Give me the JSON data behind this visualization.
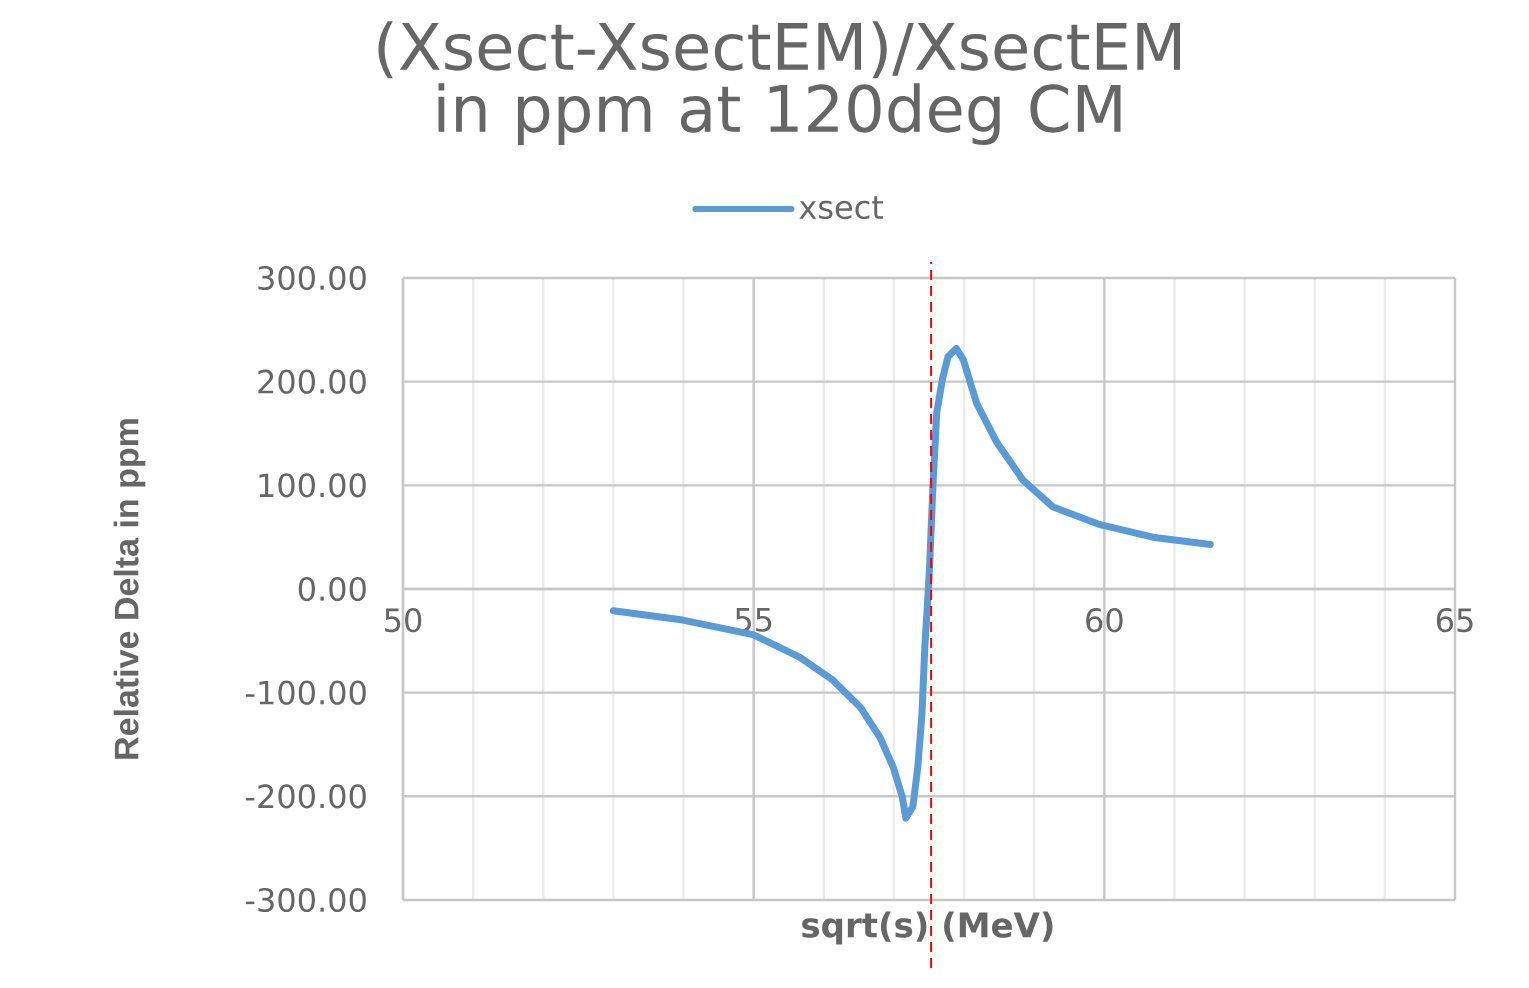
{
  "chart_data": {
    "type": "line",
    "title": "(Xsect-XsectEM)/XsectEM  in ppm at 120deg CM",
    "xlabel": "sqrt(s) (MeV)",
    "ylabel": "Relative Delta in ppm",
    "xlim": [
      50,
      65
    ],
    "xticks": [
      50,
      55,
      60,
      65
    ],
    "ylim": [
      -300,
      300
    ],
    "yticks": [
      {
        "value": -300,
        "label": "-300.00"
      },
      {
        "value": -200,
        "label": "-200.00"
      },
      {
        "value": -100,
        "label": "-100.00"
      },
      {
        "value": 0,
        "label": "0.00"
      },
      {
        "value": 100,
        "label": "100.00"
      },
      {
        "value": 200,
        "label": "200.00"
      },
      {
        "value": 300,
        "label": "300.00"
      }
    ],
    "grid": true,
    "legend": "top",
    "marker": "none",
    "line_style": "solid",
    "ref_lines": [
      {
        "axis": "x",
        "value": 57.53,
        "color": "#ff0000",
        "line_style": "dashed"
      }
    ],
    "series": [
      {
        "name": "xsect",
        "color": "#5b9bd5",
        "x": [
          53.0,
          53.99,
          54.99,
          55.66,
          56.13,
          56.52,
          56.8,
          56.99,
          57.12,
          57.17,
          57.27,
          57.34,
          57.4,
          57.44,
          57.49,
          57.51,
          57.56,
          57.61,
          57.69,
          57.77,
          57.89,
          57.99,
          58.18,
          58.47,
          58.84,
          59.27,
          59.94,
          60.69,
          61.51
        ],
        "values": [
          -21,
          -30,
          -44,
          -66,
          -88,
          -114,
          -143,
          -172,
          -201,
          -221,
          -210,
          -172,
          -120,
          -56,
          -1,
          25,
          105,
          170,
          202,
          224,
          232,
          221,
          179,
          141,
          105,
          79,
          62,
          50,
          43
        ]
      }
    ]
  }
}
